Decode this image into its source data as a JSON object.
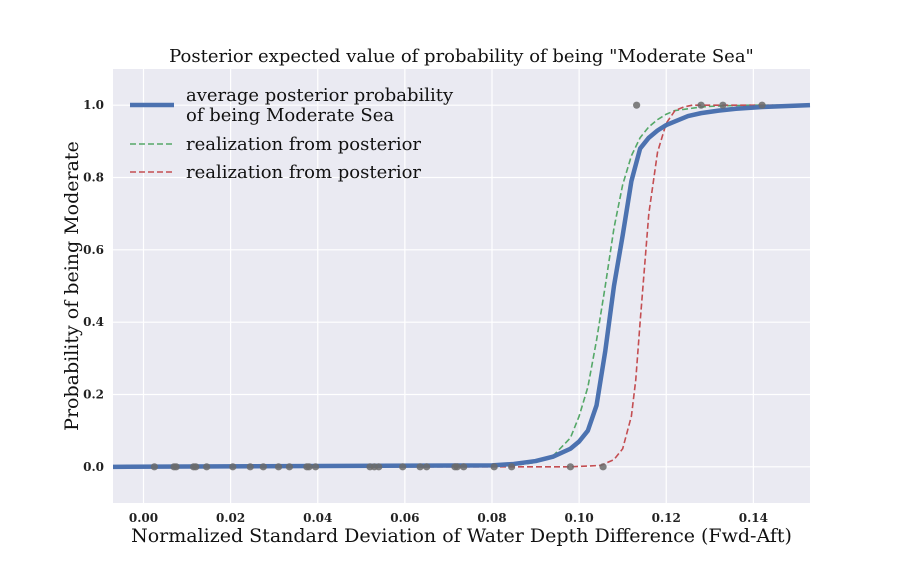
{
  "chart_data": {
    "type": "line",
    "title": "Posterior expected value of probability of being \"Moderate Sea\"",
    "xlabel": "Normalized Standard Deviation of Water Depth Difference (Fwd-Aft)",
    "ylabel": "Probability of being Moderate",
    "xlim": [
      -0.007,
      0.153
    ],
    "ylim": [
      -0.1,
      1.1
    ],
    "grid": true,
    "background": "#EAEAF2",
    "legend_position": "top-left",
    "x_ticks": [
      0.0,
      0.02,
      0.04,
      0.06,
      0.08,
      0.1,
      0.12,
      0.14
    ],
    "x_tick_labels": [
      "0.00",
      "0.02",
      "0.04",
      "0.06",
      "0.08",
      "0.10",
      "0.12",
      "0.14"
    ],
    "y_ticks": [
      0.0,
      0.2,
      0.4,
      0.6,
      0.8,
      1.0
    ],
    "y_tick_labels": [
      "0.0",
      "0.2",
      "0.4",
      "0.6",
      "0.8",
      "1.0"
    ],
    "series": [
      {
        "name": "average posterior probability\nof being Moderate Sea",
        "style": "solid",
        "color": "#4C72B0",
        "x": [
          -0.007,
          0.08,
          0.085,
          0.09,
          0.094,
          0.098,
          0.1,
          0.102,
          0.104,
          0.106,
          0.108,
          0.11,
          0.112,
          0.114,
          0.116,
          0.118,
          0.12,
          0.122,
          0.125,
          0.128,
          0.132,
          0.136,
          0.142,
          0.153
        ],
        "y": [
          0.0,
          0.004,
          0.008,
          0.016,
          0.028,
          0.05,
          0.07,
          0.1,
          0.17,
          0.32,
          0.5,
          0.64,
          0.79,
          0.88,
          0.91,
          0.93,
          0.945,
          0.955,
          0.97,
          0.978,
          0.985,
          0.99,
          0.995,
          1.0
        ]
      },
      {
        "name": "realization from posterior",
        "style": "dashed",
        "color": "#55A868",
        "x": [
          -0.007,
          0.085,
          0.09,
          0.094,
          0.098,
          0.1,
          0.102,
          0.104,
          0.106,
          0.108,
          0.11,
          0.112,
          0.114,
          0.116,
          0.118,
          0.12,
          0.122,
          0.125,
          0.128,
          0.132,
          0.14,
          0.153
        ],
        "y": [
          0.0,
          0.004,
          0.012,
          0.03,
          0.08,
          0.14,
          0.22,
          0.35,
          0.5,
          0.66,
          0.78,
          0.86,
          0.91,
          0.94,
          0.96,
          0.975,
          0.985,
          0.99,
          0.995,
          0.998,
          1.0,
          1.0
        ]
      },
      {
        "name": "realization from posterior",
        "style": "dashed",
        "color": "#C44E52",
        "x": [
          -0.007,
          0.098,
          0.105,
          0.108,
          0.11,
          0.112,
          0.113,
          0.114,
          0.116,
          0.118,
          0.12,
          0.122,
          0.124,
          0.126,
          0.13,
          0.14,
          0.153
        ],
        "y": [
          0.0,
          0.0,
          0.004,
          0.02,
          0.05,
          0.14,
          0.24,
          0.4,
          0.7,
          0.87,
          0.95,
          0.985,
          0.995,
          1.0,
          1.0,
          1.0,
          1.0
        ]
      }
    ],
    "observations": {
      "color": "#6B6B6B",
      "x": [
        0.0025,
        0.007,
        0.0075,
        0.0115,
        0.012,
        0.0145,
        0.0205,
        0.0245,
        0.0275,
        0.031,
        0.0335,
        0.0375,
        0.038,
        0.0395,
        0.052,
        0.053,
        0.054,
        0.0595,
        0.0635,
        0.065,
        0.0715,
        0.072,
        0.0735,
        0.0805,
        0.0845,
        0.098,
        0.1055,
        0.1132,
        0.128,
        0.133,
        0.142
      ],
      "y": [
        0,
        0,
        0,
        0,
        0,
        0,
        0,
        0,
        0,
        0,
        0,
        0,
        0,
        0,
        0,
        0,
        0,
        0,
        0,
        0,
        0,
        0,
        0,
        0,
        0,
        0,
        0,
        1,
        1,
        1,
        1
      ]
    }
  }
}
